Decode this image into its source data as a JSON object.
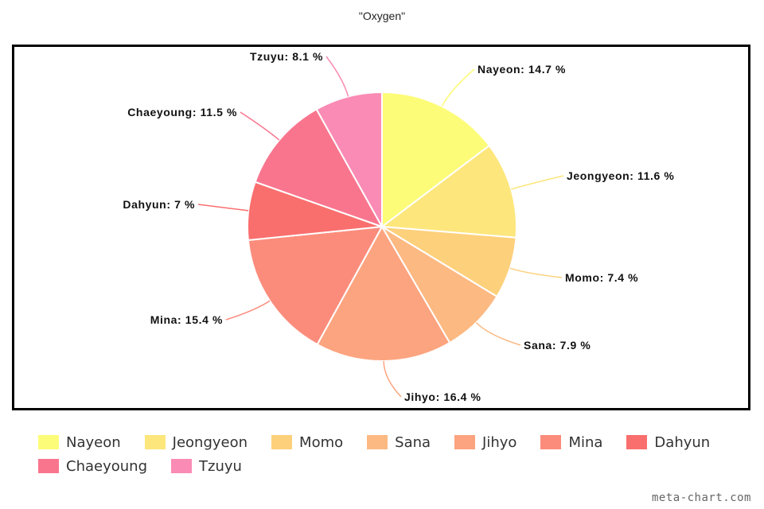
{
  "chart_data": {
    "type": "pie",
    "title": "\"Oxygen\"",
    "unit": "%",
    "categories": [
      "Nayeon",
      "Jeongyeon",
      "Momo",
      "Sana",
      "Jihyo",
      "Mina",
      "Dahyun",
      "Chaeyoung",
      "Tzuyu"
    ],
    "values": [
      14.7,
      11.6,
      7.4,
      7.9,
      16.4,
      15.4,
      7,
      11.5,
      8.1
    ],
    "colors": [
      "#fdfc78",
      "#fde67c",
      "#fdd07b",
      "#fcb982",
      "#fca47f",
      "#fb8c7c",
      "#f96f6e",
      "#f9758e",
      "#fa8bb4"
    ],
    "label_format": "{name}: {value} %",
    "legend_position": "bottom"
  },
  "watermark": "meta-chart.com"
}
